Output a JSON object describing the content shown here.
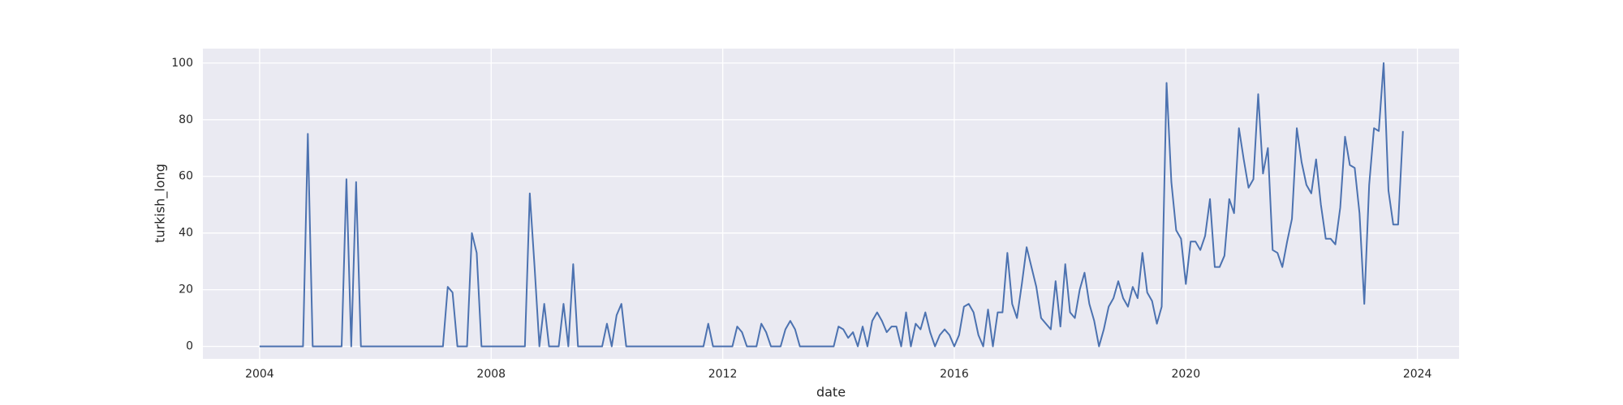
{
  "chart_data": {
    "type": "line",
    "x_label": "date",
    "y_label": "turkish_long",
    "x": [
      2004,
      2004.083,
      2004.167,
      2004.25,
      2004.333,
      2004.417,
      2004.5,
      2004.583,
      2004.667,
      2004.75,
      2004.833,
      2004.917,
      2005,
      2005.083,
      2005.167,
      2005.25,
      2005.333,
      2005.417,
      2005.5,
      2005.583,
      2005.667,
      2005.75,
      2005.833,
      2005.917,
      2006,
      2006.083,
      2006.167,
      2006.25,
      2006.333,
      2006.417,
      2006.5,
      2006.583,
      2006.667,
      2006.75,
      2006.833,
      2006.917,
      2007,
      2007.083,
      2007.167,
      2007.25,
      2007.333,
      2007.417,
      2007.5,
      2007.583,
      2007.667,
      2007.75,
      2007.833,
      2007.917,
      2008,
      2008.083,
      2008.167,
      2008.25,
      2008.333,
      2008.417,
      2008.5,
      2008.583,
      2008.667,
      2008.75,
      2008.833,
      2008.917,
      2009,
      2009.083,
      2009.167,
      2009.25,
      2009.333,
      2009.417,
      2009.5,
      2009.583,
      2009.667,
      2009.75,
      2009.833,
      2009.917,
      2010,
      2010.083,
      2010.167,
      2010.25,
      2010.333,
      2010.417,
      2010.5,
      2010.583,
      2010.667,
      2010.75,
      2010.833,
      2010.917,
      2011,
      2011.083,
      2011.167,
      2011.25,
      2011.333,
      2011.417,
      2011.5,
      2011.583,
      2011.667,
      2011.75,
      2011.833,
      2011.917,
      2012,
      2012.083,
      2012.167,
      2012.25,
      2012.333,
      2012.417,
      2012.5,
      2012.583,
      2012.667,
      2012.75,
      2012.833,
      2012.917,
      2013,
      2013.083,
      2013.167,
      2013.25,
      2013.333,
      2013.417,
      2013.5,
      2013.583,
      2013.667,
      2013.75,
      2013.833,
      2013.917,
      2014,
      2014.083,
      2014.167,
      2014.25,
      2014.333,
      2014.417,
      2014.5,
      2014.583,
      2014.667,
      2014.75,
      2014.833,
      2014.917,
      2015,
      2015.083,
      2015.167,
      2015.25,
      2015.333,
      2015.417,
      2015.5,
      2015.583,
      2015.667,
      2015.75,
      2015.833,
      2015.917,
      2016,
      2016.083,
      2016.167,
      2016.25,
      2016.333,
      2016.417,
      2016.5,
      2016.583,
      2016.667,
      2016.75,
      2016.833,
      2016.917,
      2017,
      2017.083,
      2017.167,
      2017.25,
      2017.333,
      2017.417,
      2017.5,
      2017.583,
      2017.667,
      2017.75,
      2017.833,
      2017.917,
      2018,
      2018.083,
      2018.167,
      2018.25,
      2018.333,
      2018.417,
      2018.5,
      2018.583,
      2018.667,
      2018.75,
      2018.833,
      2018.917,
      2019,
      2019.083,
      2019.167,
      2019.25,
      2019.333,
      2019.417,
      2019.5,
      2019.583,
      2019.667,
      2019.75,
      2019.833,
      2019.917,
      2020,
      2020.083,
      2020.167,
      2020.25,
      2020.333,
      2020.417,
      2020.5,
      2020.583,
      2020.667,
      2020.75,
      2020.833,
      2020.917,
      2021,
      2021.083,
      2021.167,
      2021.25,
      2021.333,
      2021.417,
      2021.5,
      2021.583,
      2021.667,
      2021.75,
      2021.833,
      2021.917,
      2022,
      2022.083,
      2022.167,
      2022.25,
      2022.333,
      2022.417,
      2022.5,
      2022.583,
      2022.667,
      2022.75,
      2022.833,
      2022.917,
      2023,
      2023.083,
      2023.167,
      2023.25,
      2023.333,
      2023.417,
      2023.5,
      2023.583,
      2023.667,
      2023.75
    ],
    "series": [
      {
        "color": "#4c72b0",
        "values": [
          0,
          0,
          0,
          0,
          0,
          0,
          0,
          0,
          0,
          0,
          75,
          0,
          0,
          0,
          0,
          0,
          0,
          0,
          59,
          0,
          58,
          0,
          0,
          0,
          0,
          0,
          0,
          0,
          0,
          0,
          0,
          0,
          0,
          0,
          0,
          0,
          0,
          0,
          0,
          21,
          19,
          0,
          0,
          0,
          40,
          33,
          0,
          0,
          0,
          0,
          0,
          0,
          0,
          0,
          0,
          0,
          54,
          28,
          0,
          15,
          0,
          0,
          0,
          15,
          0,
          29,
          0,
          0,
          0,
          0,
          0,
          0,
          8,
          0,
          11,
          15,
          0,
          0,
          0,
          0,
          0,
          0,
          0,
          0,
          0,
          0,
          0,
          0,
          0,
          0,
          0,
          0,
          0,
          8,
          0,
          0,
          0,
          0,
          0,
          7,
          5,
          0,
          0,
          0,
          8,
          5,
          0,
          0,
          0,
          6,
          9,
          6,
          0,
          0,
          0,
          0,
          0,
          0,
          0,
          0,
          7,
          6,
          3,
          5,
          0,
          7,
          0,
          9,
          12,
          9,
          5,
          7,
          7,
          0,
          12,
          0,
          8,
          6,
          12,
          5,
          0,
          4,
          6,
          4,
          0,
          4,
          14,
          15,
          12,
          4,
          0,
          13,
          0,
          12,
          12,
          33,
          15,
          10,
          22,
          35,
          28,
          21,
          10,
          8,
          6,
          23,
          7,
          29,
          12,
          10,
          20,
          26,
          15,
          9,
          0,
          6,
          14,
          17,
          23,
          17,
          14,
          21,
          17,
          33,
          19,
          16,
          8,
          14,
          93,
          58,
          41,
          38,
          22,
          37,
          37,
          34,
          39,
          52,
          28,
          28,
          32,
          52,
          47,
          77,
          66,
          56,
          59,
          89,
          61,
          70,
          34,
          33,
          28,
          37,
          45,
          77,
          65,
          57,
          54,
          66,
          50,
          38,
          38,
          36,
          49,
          74,
          64,
          63,
          47,
          15,
          57,
          77,
          76,
          100,
          55,
          43,
          43,
          76
        ]
      }
    ],
    "xlim": [
      2003.02,
      2024.72
    ],
    "xticks": [
      2004,
      2008,
      2012,
      2016,
      2020,
      2024
    ],
    "ylim": [
      -4.4,
      105.1
    ],
    "yticks": [
      0,
      20,
      40,
      60,
      80,
      100
    ],
    "grid": true
  }
}
